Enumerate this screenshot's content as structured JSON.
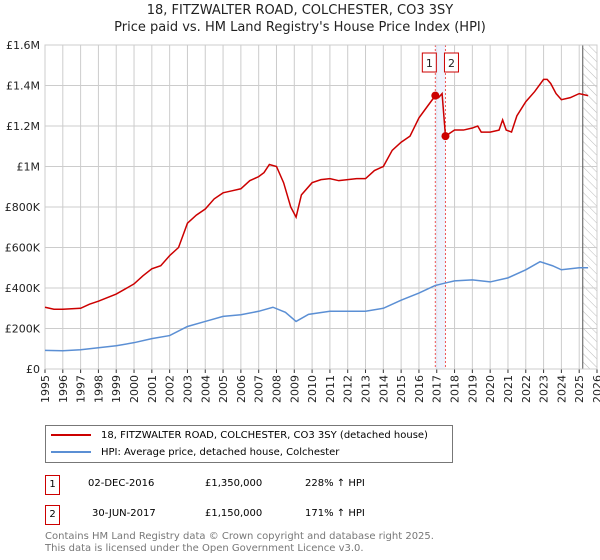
{
  "chart_data": {
    "type": "line",
    "title": "18, FITZWALTER ROAD, COLCHESTER, CO3 3SY",
    "subtitle": "Price paid vs. HM Land Registry's House Price Index (HPI)",
    "xlim": [
      1995,
      2026
    ],
    "ylim": [
      0,
      1600000
    ],
    "x_ticks": [
      "1995",
      "1996",
      "1997",
      "1998",
      "1999",
      "2000",
      "2001",
      "2002",
      "2003",
      "2004",
      "2005",
      "2006",
      "2007",
      "2008",
      "2009",
      "2010",
      "2011",
      "2012",
      "2013",
      "2014",
      "2015",
      "2016",
      "2017",
      "2018",
      "2019",
      "2020",
      "2021",
      "2022",
      "2023",
      "2024",
      "2025",
      "2026"
    ],
    "y_ticks": [
      {
        "v": 0,
        "label": "£0"
      },
      {
        "v": 200000,
        "label": "£200K"
      },
      {
        "v": 400000,
        "label": "£400K"
      },
      {
        "v": 600000,
        "label": "£600K"
      },
      {
        "v": 800000,
        "label": "£800K"
      },
      {
        "v": 1000000,
        "label": "£1M"
      },
      {
        "v": 1200000,
        "label": "£1.2M"
      },
      {
        "v": 1400000,
        "label": "£1.4M"
      },
      {
        "v": 1600000,
        "label": "£1.6M"
      }
    ],
    "grid": true,
    "forecast_start": 2025.2,
    "series": [
      {
        "name": "18, FITZWALTER ROAD, COLCHESTER, CO3 3SY (detached house)",
        "color": "#cc0000",
        "x": [
          1995,
          1995.5,
          1996,
          1997,
          1997.5,
          1998,
          1999,
          2000,
          2000.5,
          2001,
          2001.5,
          2002,
          2002.5,
          2003,
          2003.5,
          2004,
          2004.5,
          2005,
          2005.5,
          2006,
          2006.5,
          2007,
          2007.3,
          2007.6,
          2008,
          2008.4,
          2008.8,
          2009.1,
          2009.4,
          2010,
          2010.5,
          2011,
          2011.5,
          2012,
          2012.5,
          2013,
          2013.5,
          2014,
          2014.5,
          2015,
          2015.5,
          2016,
          2016.5,
          2016.92,
          2017.1,
          2017.3,
          2017.49,
          2018,
          2018.5,
          2019,
          2019.3,
          2019.5,
          2020,
          2020.5,
          2020.7,
          2020.9,
          2021.2,
          2021.5,
          2022,
          2022.5,
          2023,
          2023.2,
          2023.4,
          2023.7,
          2024,
          2024.5,
          2025,
          2025.5
        ],
        "y": [
          305000,
          295000,
          295000,
          300000,
          320000,
          335000,
          370000,
          420000,
          460000,
          495000,
          510000,
          560000,
          600000,
          720000,
          760000,
          790000,
          840000,
          870000,
          880000,
          890000,
          930000,
          950000,
          970000,
          1010000,
          1000000,
          920000,
          800000,
          750000,
          860000,
          920000,
          935000,
          940000,
          930000,
          935000,
          940000,
          940000,
          980000,
          1000000,
          1080000,
          1120000,
          1150000,
          1240000,
          1300000,
          1350000,
          1340000,
          1360000,
          1150000,
          1180000,
          1180000,
          1190000,
          1200000,
          1170000,
          1170000,
          1180000,
          1230000,
          1180000,
          1170000,
          1250000,
          1320000,
          1370000,
          1430000,
          1430000,
          1410000,
          1360000,
          1330000,
          1340000,
          1360000,
          1350000
        ]
      },
      {
        "name": "HPI: Average price, detached house, Colchester",
        "color": "#5b8fd4",
        "x": [
          1995,
          1996,
          1997,
          1998,
          1999,
          2000,
          2001,
          2002,
          2003,
          2004,
          2005,
          2006,
          2007,
          2007.8,
          2008.5,
          2009.1,
          2009.8,
          2011,
          2012,
          2013,
          2014,
          2015,
          2016,
          2016.9,
          2017.5,
          2018,
          2019,
          2020,
          2021,
          2022,
          2022.8,
          2023.5,
          2024,
          2025,
          2025.5
        ],
        "y": [
          92000,
          90000,
          95000,
          105000,
          115000,
          130000,
          150000,
          165000,
          210000,
          235000,
          260000,
          268000,
          285000,
          305000,
          280000,
          235000,
          270000,
          285000,
          285000,
          285000,
          300000,
          340000,
          375000,
          412000,
          425000,
          435000,
          440000,
          430000,
          450000,
          490000,
          530000,
          510000,
          490000,
          500000,
          500000
        ]
      }
    ],
    "sales": [
      {
        "id": "1",
        "x": 2016.92,
        "price": 1350000,
        "date": "02-DEC-2016",
        "price_label": "£1,350,000",
        "hpi": "228% ↑ HPI"
      },
      {
        "id": "2",
        "x": 2017.49,
        "price": 1150000,
        "date": "30-JUN-2017",
        "price_label": "£1,150,000",
        "hpi": "171% ↑ HPI"
      }
    ]
  },
  "footer": {
    "line1": "Contains HM Land Registry data © Crown copyright and database right 2025.",
    "line2": "This data is licensed under the Open Government Licence v3.0."
  }
}
